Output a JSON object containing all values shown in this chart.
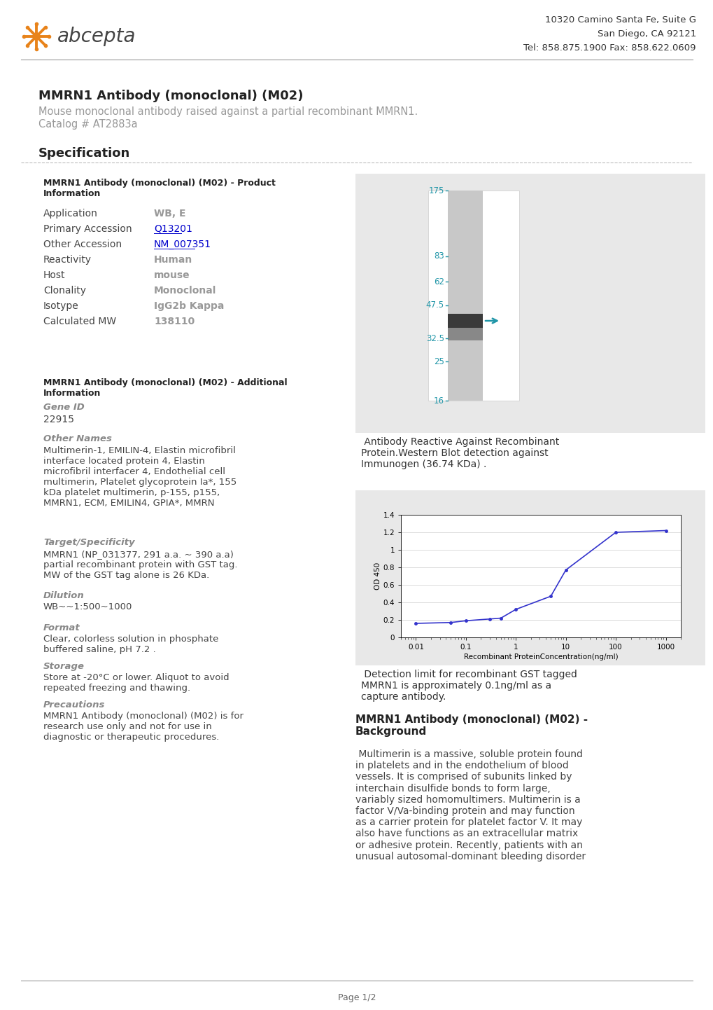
{
  "title_main": "MMRN1 Antibody (monoclonal) (M02)",
  "subtitle": "Mouse monoclonal antibody raised against a partial recombinant MMRN1.",
  "catalog": "Catalog # AT2883a",
  "company_address_line1": "10320 Camino Santa Fe, Suite G",
  "company_address_line2": "San Diego, CA 92121",
  "company_address_line3": "Tel: 858.875.1900 Fax: 858.622.0609",
  "section_title": "Specification",
  "product_info_title": "MMRN1 Antibody (monoclonal) (M02) - Product\nInformation",
  "fields": [
    [
      "Application",
      "WB, E",
      false
    ],
    [
      "Primary Accession",
      "Q13201",
      true
    ],
    [
      "Other Accession",
      "NM_007351",
      true
    ],
    [
      "Reactivity",
      "Human",
      false
    ],
    [
      "Host",
      "mouse",
      false
    ],
    [
      "Clonality",
      "Monoclonal",
      false
    ],
    [
      "Isotype",
      "IgG2b Kappa",
      false
    ],
    [
      "Calculated MW",
      "138110",
      false
    ]
  ],
  "additional_info_title": "MMRN1 Antibody (monoclonal) (M02) - Additional\nInformation",
  "gene_id_label": "Gene ID",
  "gene_id_value": "22915",
  "other_names_label": "Other Names",
  "other_names_value": "Multimerin-1, EMILIN-4, Elastin microfibril\ninterface located protein 4, Elastin\nmicrofibril interfacer 4, Endothelial cell\nmultimerin, Platelet glycoprotein Ia*, 155\nkDa platelet multimerin, p-155, p155,\nMMRN1, ECM, EMILIN4, GPIA*, MMRN",
  "target_label": "Target/Specificity",
  "target_value": "MMRN1 (NP_031377, 291 a.a. ~ 390 a.a)\npartial recombinant protein with GST tag.\nMW of the GST tag alone is 26 KDa.",
  "dilution_label": "Dilution",
  "dilution_value": "WB~~1:500~1000",
  "format_label": "Format",
  "format_value": "Clear, colorless solution in phosphate\nbuffered saline, pH 7.2 .",
  "storage_label": "Storage",
  "storage_value": "Store at -20°C or lower. Aliquot to avoid\nrepeated freezing and thawing.",
  "precautions_label": "Precautions",
  "precautions_value": "MMRN1 Antibody (monoclonal) (M02) is for\nresearch use only and not for use in\ndiagnostic or therapeutic procedures.",
  "wb_caption": " Antibody Reactive Against Recombinant\nProtein.Western Blot detection against\nImmunogen (36.74 KDa) .",
  "wb_markers": [
    175,
    83,
    62,
    47.5,
    32.5,
    25,
    16
  ],
  "wb_marker_color": "#2196a8",
  "wb_arrow_color": "#2196a8",
  "wb_bg_color": "#e8e8e8",
  "elisa_caption": " Detection limit for recombinant GST tagged\nMMRN1 is approximately 0.1ng/ml as a\ncapture antibody.",
  "elisa_bg_color": "#e8e8e8",
  "elisa_x": [
    0.01,
    0.05,
    0.1,
    0.3,
    0.5,
    1,
    5,
    10,
    100,
    1000
  ],
  "elisa_y": [
    0.16,
    0.17,
    0.19,
    0.21,
    0.22,
    0.32,
    0.47,
    0.77,
    1.2,
    1.22
  ],
  "background_title": "MMRN1 Antibody (monoclonal) (M02) -\nBackground",
  "background_text": " Multimerin is a massive, soluble protein found\nin platelets and in the endothelium of blood\nvessels. It is comprised of subunits linked by\ninterchain disulfide bonds to form large,\nvariably sized homomultimers. Multimerin is a\nfactor V/Va-binding protein and may function\nas a carrier protein for platelet factor V. It may\nalso have functions as an extracellular matrix\nor adhesive protein. Recently, patients with an\nunusual autosomal-dominant bleeding disorder",
  "page_footer": "Page 1/2",
  "orange_color": "#E8831A",
  "blue_link": "#0000cc",
  "dark_text": "#333333",
  "gray_text": "#999999",
  "label_text": "#555555"
}
